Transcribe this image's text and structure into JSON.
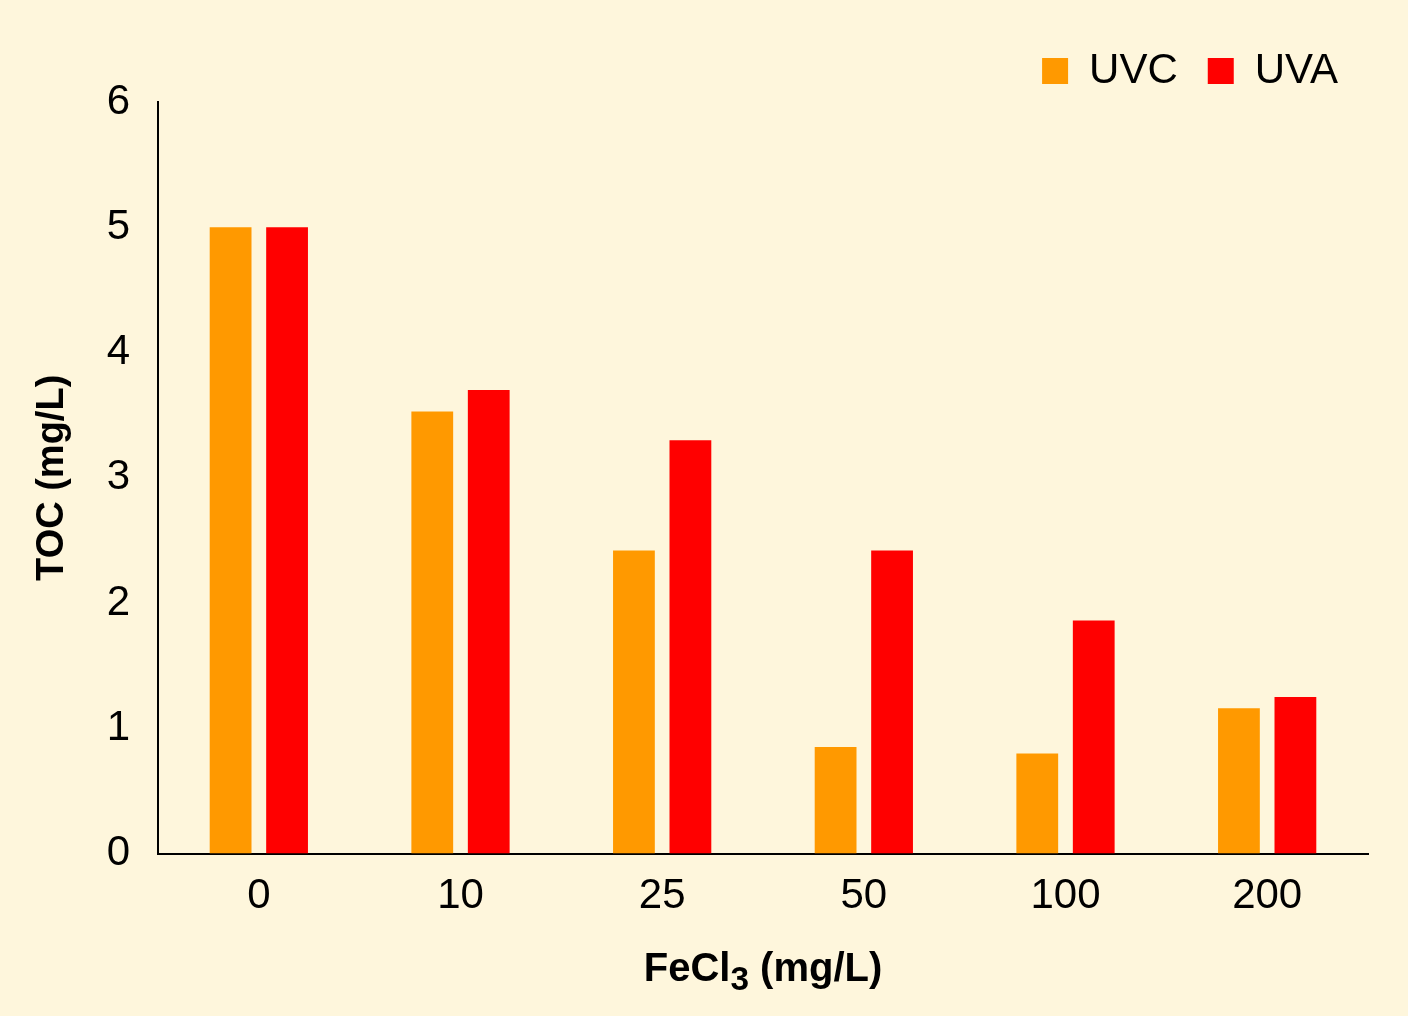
{
  "chart_data": {
    "type": "bar",
    "xlabel": "FeCl$_{3}$ (mg/L)",
    "ylabel": "TOC (mg/L)",
    "categories": [
      "0",
      "10",
      "25",
      "50",
      "100",
      "200"
    ],
    "series": [
      {
        "name": "UVC",
        "color": "#ff9900",
        "values": [
          5.0,
          3.53,
          2.42,
          0.85,
          0.8,
          1.16
        ]
      },
      {
        "name": "UVA",
        "color": "#ff0000",
        "values": [
          5.0,
          3.7,
          3.3,
          2.42,
          1.86,
          1.25
        ]
      }
    ],
    "ylim": [
      0,
      6
    ],
    "yticks": [
      0,
      1,
      2,
      3,
      4,
      5,
      6
    ],
    "grid": false,
    "legend": "top right"
  }
}
